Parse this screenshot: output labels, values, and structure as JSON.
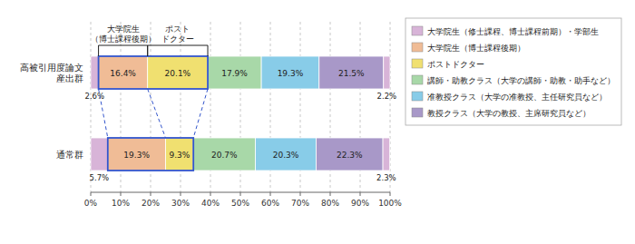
{
  "chart_data": {
    "type": "bar",
    "orientation": "horizontal",
    "stacked": true,
    "data_labels": true,
    "grid": true,
    "legend": "right",
    "categories": [
      "高被引用度論文\n産出群",
      "通常群"
    ],
    "series": [
      {
        "name": "大学院生（修士課程、博士課程前期）・学部生",
        "color": "#D8B4D8",
        "values": [
          2.6,
          5.7
        ],
        "value_labels": [
          "2.6%",
          "5.7%"
        ]
      },
      {
        "name": "大学院生（博士課程後期）",
        "color": "#F0BC96",
        "values": [
          16.4,
          19.3
        ],
        "value_labels": [
          "16.4%",
          "19.3%"
        ]
      },
      {
        "name": "ポストドクター",
        "color": "#F0E070",
        "values": [
          20.1,
          9.3
        ],
        "value_labels": [
          "20.1%",
          "9.3%"
        ]
      },
      {
        "name": "講師・助教クラス（大学の講師・助教・助手など）",
        "color": "#A8D8A8",
        "values": [
          17.9,
          20.7
        ],
        "value_labels": [
          "17.9%",
          "20.7%"
        ]
      },
      {
        "name": "准教授クラス（大学の准教授、主任研究員など）",
        "color": "#88CCE8",
        "values": [
          19.3,
          20.3
        ],
        "value_labels": [
          "19.3%",
          "20.3%"
        ]
      },
      {
        "name": "教授クラス（大学の教授、主席研究員など）",
        "color": "#A898C8",
        "values": [
          21.5,
          22.3
        ],
        "value_labels": [
          "21.5%",
          "22.3%"
        ]
      },
      {
        "color": "#D8B4D8",
        "values": [
          2.2,
          2.3
        ],
        "value_labels": [
          "2.2%",
          "2.3%"
        ]
      }
    ],
    "xlim": [
      0,
      100
    ],
    "xticks": [
      {
        "value": 0,
        "label": "0%"
      },
      {
        "value": 10,
        "label": "10%"
      },
      {
        "value": 20,
        "label": "20%"
      },
      {
        "value": 30,
        "label": "30%"
      },
      {
        "value": 40,
        "label": "40%"
      },
      {
        "value": 50,
        "label": "50%"
      },
      {
        "value": 60,
        "label": "60%"
      },
      {
        "value": 70,
        "label": "70%"
      },
      {
        "value": 80,
        "label": "80%"
      },
      {
        "value": 90,
        "label": "90%"
      },
      {
        "value": 100,
        "label": "100%"
      }
    ],
    "annotations": [
      {
        "text": "大学院生\n（博士課程後期）",
        "series": 1
      },
      {
        "text": "ポスト\nドクター",
        "series": 2
      }
    ]
  }
}
